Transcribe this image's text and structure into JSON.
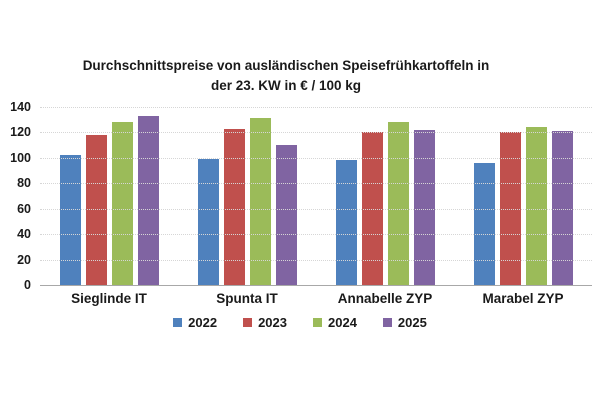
{
  "chart_data": {
    "type": "bar",
    "title": "Durchschnittspreise von ausländischen Speisefrühkartoffeln in der 23. KW in € / 100 kg",
    "title_lines": [
      "Durchschnittspreise von ausländischen Speisefrühkartoffeln in",
      "der 23. KW in € / 100 kg"
    ],
    "categories": [
      "Sieglinde IT",
      "Spunta IT",
      "Annabelle ZYP",
      "Marabel ZYP"
    ],
    "series": [
      {
        "name": "2022",
        "color": "#4F81BD",
        "values": [
          102,
          99,
          98,
          96
        ]
      },
      {
        "name": "2023",
        "color": "#C0504D",
        "values": [
          118,
          123,
          120,
          120
        ]
      },
      {
        "name": "2024",
        "color": "#9BBB59",
        "values": [
          128,
          131,
          128,
          124
        ]
      },
      {
        "name": "2025",
        "color": "#8064A2",
        "values": [
          133,
          110,
          122,
          121
        ]
      }
    ],
    "ylim": [
      0,
      140
    ],
    "ytick_step": 20,
    "ytick_labels": [
      "140",
      "120",
      "100",
      "80",
      "60",
      "40",
      "20",
      "0"
    ],
    "grid": true,
    "legend_position": "bottom",
    "xlabel": "",
    "ylabel": ""
  },
  "colors": {
    "background": "#ffffff",
    "text": "#1a1a1a",
    "gridline": "#d6d6d6",
    "axis_line": "#a8a8a8"
  }
}
